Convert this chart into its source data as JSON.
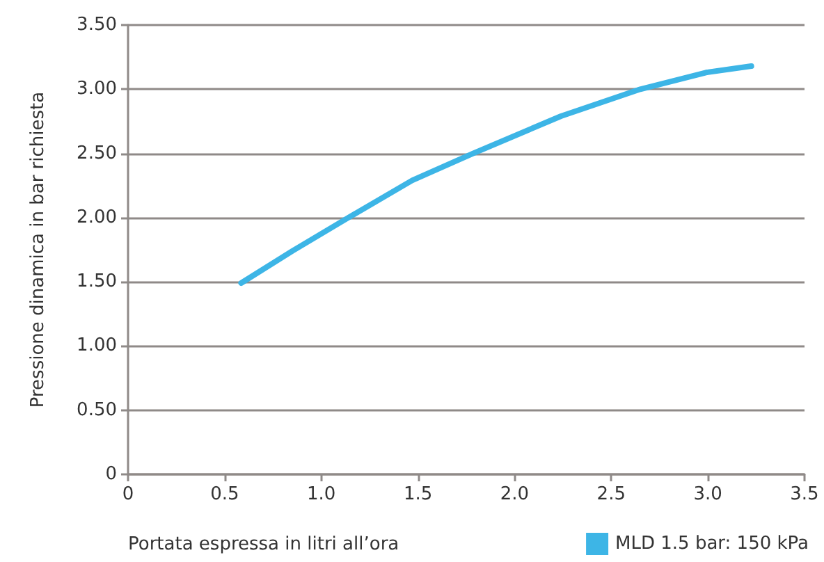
{
  "chart_data": {
    "type": "line",
    "xlabel": "Portata espressa in litri all’ora",
    "ylabel": "Pressione dinamica in bar richiesta",
    "xlim": [
      0,
      3.5
    ],
    "xticks": [
      0,
      {
        "value": 0.5,
        "label": "0.5"
      },
      {
        "value": 1,
        "label": "1.0"
      },
      {
        "value": 1.5,
        "label": "1.5"
      },
      {
        "value": 2,
        "label": "2.0"
      },
      {
        "value": 2.5,
        "label": "2.5"
      },
      {
        "value": 3,
        "label": "3.0"
      },
      {
        "value": 3.5,
        "label": "3.5"
      }
    ],
    "ylim": [
      0,
      3.5
    ],
    "yticks": [
      0,
      {
        "value": 0.5,
        "label": "0.50"
      },
      {
        "value": 1,
        "label": "1.00"
      },
      {
        "value": 1.5,
        "label": "1.50"
      },
      {
        "value": 2,
        "label": "2.00"
      },
      {
        "value": 2.5,
        "label": "2.50"
      },
      {
        "value": 3,
        "label": "3.00"
      },
      {
        "value": 3.5,
        "label": "3.50"
      }
    ],
    "grid": "y",
    "legend": "bottom right",
    "marker": "none",
    "line_style": "solid",
    "series": [
      {
        "name": "MLD 1.5 bar: 150 kPa",
        "color": "#3db5e6",
        "x": [
          0.585,
          0.85,
          1.14,
          1.47,
          1.785,
          2.24,
          2.65,
          2.99,
          3.225
        ],
        "values": [
          1.49,
          1.74,
          2.0,
          2.29,
          2.5,
          2.79,
          3.0,
          3.13,
          3.18
        ]
      }
    ]
  }
}
